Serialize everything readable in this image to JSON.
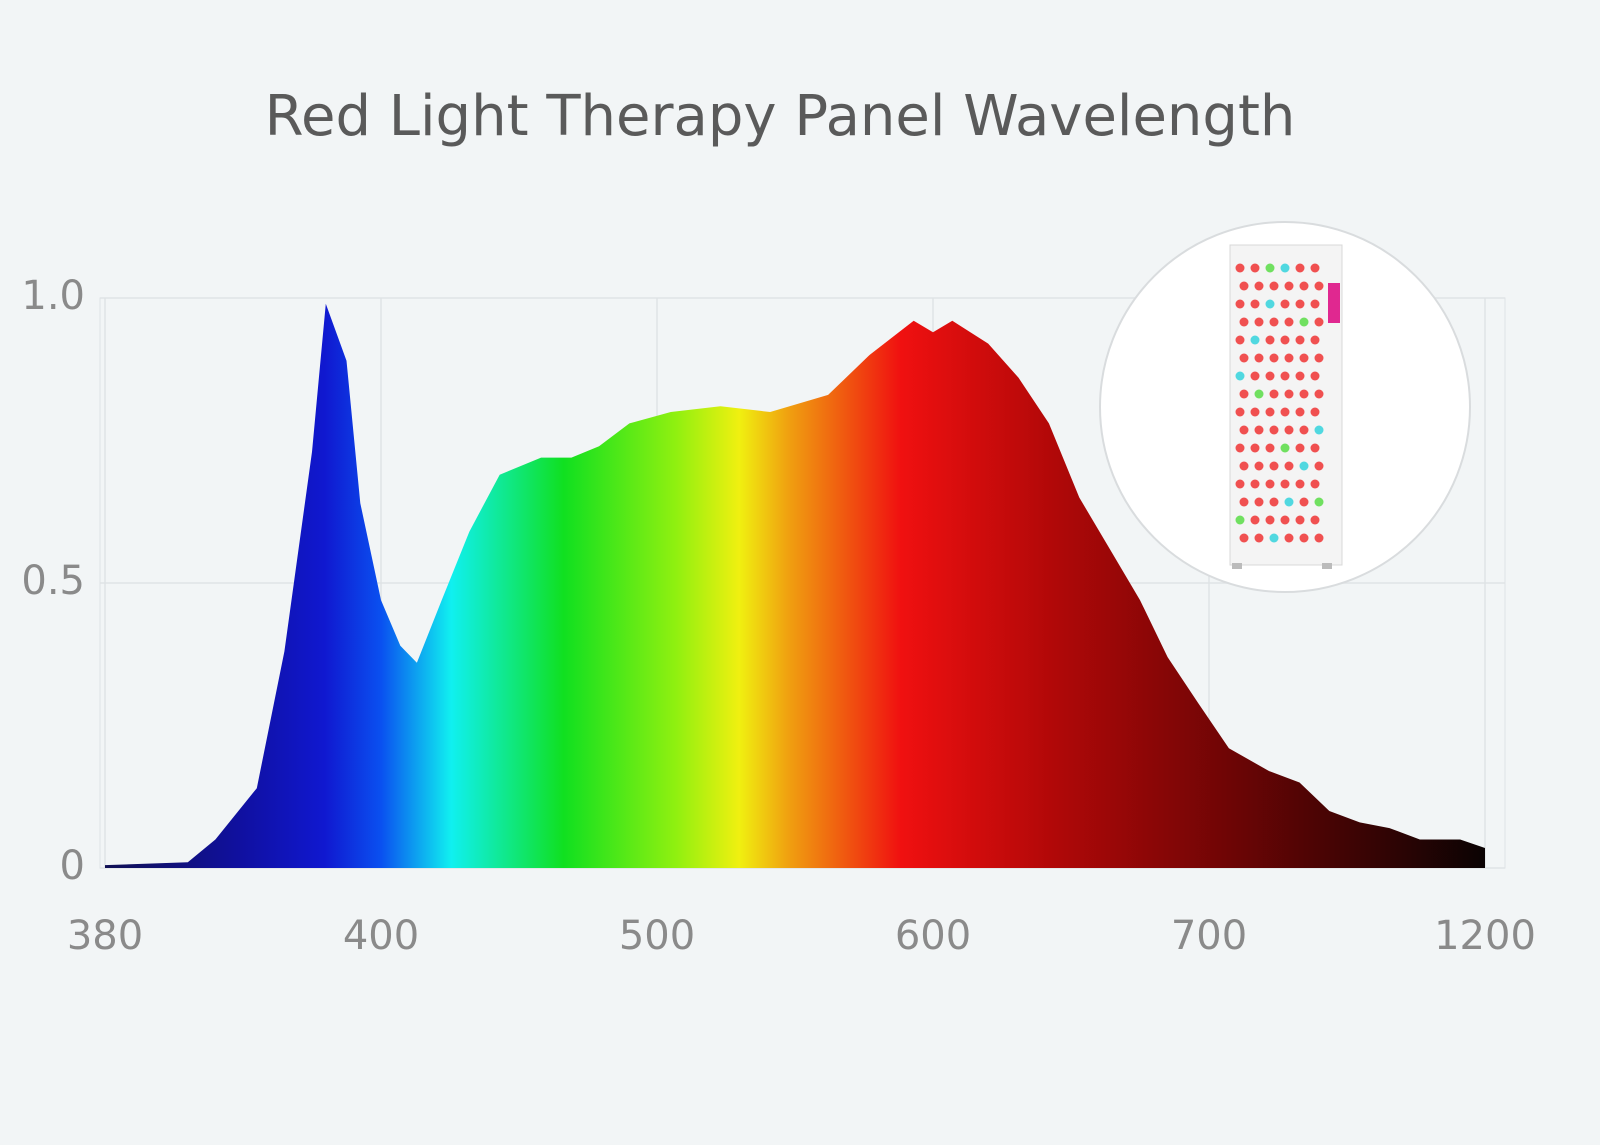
{
  "chart_data": {
    "type": "area",
    "title": "Red Light Therapy Panel Wavelength",
    "x": [
      380,
      386,
      388,
      391,
      393,
      395,
      396,
      397.5,
      398.5,
      400,
      407,
      413,
      422,
      432,
      443,
      458,
      469,
      479,
      490,
      505,
      523,
      541,
      562,
      577,
      593,
      600,
      607,
      620,
      631,
      642,
      653,
      664,
      675,
      685,
      696,
      736,
      809,
      864,
      918,
      973,
      1027,
      1082,
      1155,
      1200
    ],
    "values": [
      0.005,
      0.01,
      0.05,
      0.14,
      0.38,
      0.73,
      0.99,
      0.89,
      0.64,
      0.47,
      0.39,
      0.36,
      0.47,
      0.59,
      0.69,
      0.72,
      0.72,
      0.74,
      0.78,
      0.8,
      0.81,
      0.8,
      0.83,
      0.9,
      0.96,
      0.94,
      0.96,
      0.92,
      0.86,
      0.78,
      0.65,
      0.56,
      0.47,
      0.37,
      0.29,
      0.21,
      0.17,
      0.15,
      0.1,
      0.08,
      0.07,
      0.05,
      0.05,
      0.035
    ],
    "xlim": [
      380,
      1200
    ],
    "xticks": [
      380,
      400,
      500,
      600,
      700,
      1200
    ],
    "x_scale": "piecewise",
    "ylim": [
      0,
      1
    ],
    "yticks": [
      0,
      0.5,
      {
        "value": 1,
        "label": "1.0"
      }
    ],
    "grid": true
  }
}
